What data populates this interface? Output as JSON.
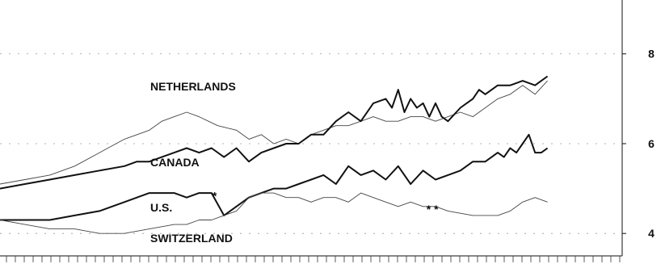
{
  "chart_data": {
    "type": "line",
    "title": "",
    "xlabel": "",
    "ylabel": "",
    "x_range": [
      0,
      100
    ],
    "ylim": [
      3.5,
      9.2
    ],
    "yticks": [
      {
        "value": 8,
        "label": "8"
      },
      {
        "value": 6,
        "label": "6"
      },
      {
        "value": 4,
        "label": "4"
      }
    ],
    "grid": "dashed",
    "series": [
      {
        "name": "NETHERLANDS",
        "style": "thin",
        "x": [
          0,
          4,
          8,
          12,
          16,
          20,
          24,
          26,
          28,
          30,
          32,
          35,
          38,
          40,
          42,
          44,
          46,
          48,
          50,
          52,
          54,
          56,
          58,
          60,
          62,
          64,
          66,
          68,
          70,
          72,
          74,
          76,
          78,
          80,
          82,
          84,
          86,
          88
        ],
        "y": [
          5.1,
          5.2,
          5.3,
          5.5,
          5.8,
          6.1,
          6.3,
          6.5,
          6.6,
          6.7,
          6.6,
          6.4,
          6.3,
          6.1,
          6.2,
          6.0,
          6.1,
          6.0,
          6.2,
          6.3,
          6.4,
          6.4,
          6.5,
          6.6,
          6.5,
          6.5,
          6.6,
          6.6,
          6.5,
          6.6,
          6.7,
          6.6,
          6.8,
          7.0,
          7.1,
          7.3,
          7.1,
          7.4
        ]
      },
      {
        "name": "CANADA",
        "style": "thick",
        "x": [
          0,
          4,
          8,
          12,
          16,
          20,
          22,
          24,
          26,
          28,
          30,
          32,
          34,
          36,
          38,
          40,
          42,
          44,
          46,
          48,
          50,
          52,
          54,
          56,
          58,
          60,
          62,
          63,
          64,
          65,
          66,
          67,
          68,
          69,
          70,
          71,
          72,
          74,
          76,
          77,
          78,
          80,
          82,
          84,
          86,
          87,
          88
        ],
        "y": [
          5.0,
          5.1,
          5.2,
          5.3,
          5.4,
          5.5,
          5.6,
          5.6,
          5.7,
          5.8,
          5.9,
          5.8,
          5.9,
          5.7,
          5.9,
          5.6,
          5.8,
          5.9,
          6.0,
          6.0,
          6.2,
          6.2,
          6.5,
          6.7,
          6.5,
          6.9,
          7.0,
          6.8,
          7.2,
          6.7,
          7.0,
          6.8,
          6.9,
          6.6,
          6.9,
          6.6,
          6.5,
          6.8,
          7.0,
          7.2,
          7.1,
          7.3,
          7.3,
          7.4,
          7.3,
          7.4,
          7.5
        ]
      },
      {
        "name": "U.S.",
        "style": "thick",
        "x": [
          0,
          4,
          8,
          12,
          16,
          20,
          22,
          24,
          26,
          28,
          30,
          32,
          34,
          36,
          38,
          40,
          42,
          44,
          46,
          48,
          50,
          52,
          54,
          56,
          58,
          60,
          62,
          64,
          66,
          68,
          70,
          72,
          74,
          76,
          78,
          80,
          81,
          82,
          83,
          84,
          85,
          86,
          87,
          88
        ],
        "y": [
          4.3,
          4.3,
          4.3,
          4.4,
          4.5,
          4.7,
          4.8,
          4.9,
          4.9,
          4.9,
          4.8,
          4.9,
          4.9,
          4.4,
          4.6,
          4.8,
          4.9,
          5.0,
          5.0,
          5.1,
          5.2,
          5.3,
          5.1,
          5.5,
          5.3,
          5.4,
          5.2,
          5.5,
          5.1,
          5.4,
          5.2,
          5.3,
          5.4,
          5.6,
          5.6,
          5.8,
          5.7,
          5.9,
          5.8,
          6.0,
          6.2,
          5.8,
          5.8,
          5.9
        ]
      },
      {
        "name": "SWITZERLAND",
        "style": "thin",
        "x": [
          0,
          4,
          8,
          12,
          16,
          20,
          24,
          28,
          30,
          32,
          34,
          36,
          38,
          40,
          42,
          44,
          46,
          48,
          50,
          52,
          54,
          56,
          58,
          60,
          62,
          64,
          66,
          68,
          70,
          72,
          76,
          78,
          80,
          82,
          84,
          86,
          88
        ],
        "y": [
          4.3,
          4.2,
          4.1,
          4.1,
          4.0,
          4.0,
          4.1,
          4.2,
          4.2,
          4.3,
          4.3,
          4.4,
          4.5,
          4.8,
          4.9,
          4.9,
          4.8,
          4.8,
          4.7,
          4.8,
          4.8,
          4.7,
          4.9,
          4.8,
          4.7,
          4.6,
          4.7,
          4.6,
          4.6,
          4.5,
          4.4,
          4.4,
          4.4,
          4.5,
          4.7,
          4.8,
          4.7
        ]
      }
    ],
    "annotations": [
      {
        "text": "*",
        "x": 34.5,
        "y": 4.75
      },
      {
        "text": "* *",
        "x": 69.5,
        "y": 4.45
      }
    ]
  }
}
